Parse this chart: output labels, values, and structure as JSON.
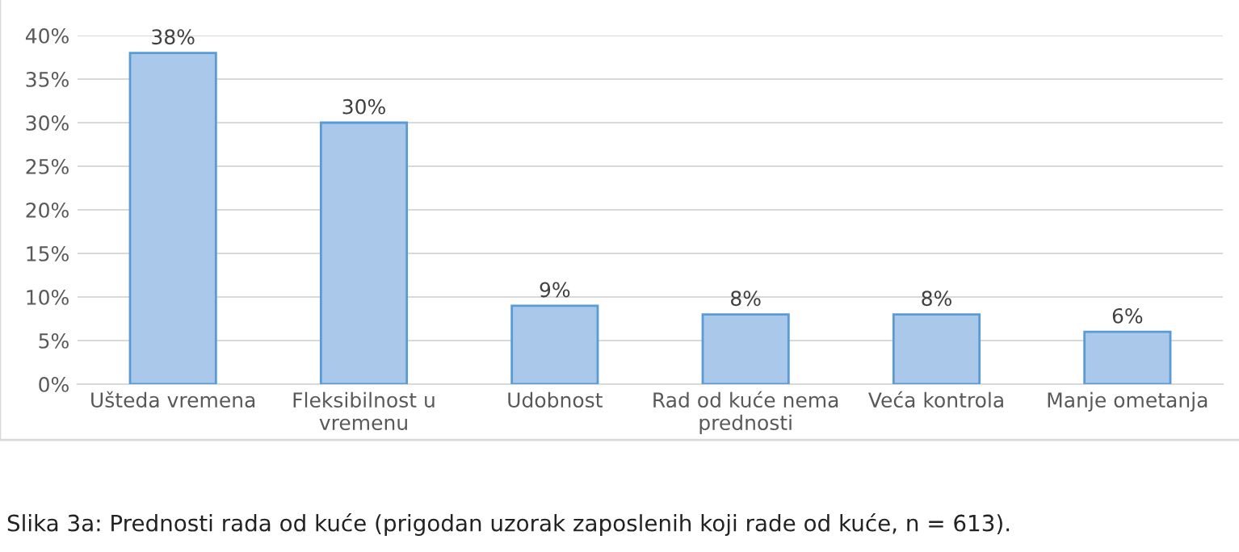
{
  "chart_data": {
    "type": "bar",
    "categories": [
      "Ušteda vremena",
      "Fleksibilnost u vremenu",
      "Udobnost",
      "Rad od kuće nema prednosti",
      "Veća kontrola",
      "Manje ometanja"
    ],
    "values": [
      38,
      30,
      9,
      8,
      8,
      6
    ],
    "value_labels": [
      "38%",
      "30%",
      "9%",
      "8%",
      "8%",
      "6%"
    ],
    "color": "#a9c8ea",
    "ylim": [
      0,
      40
    ],
    "yticks": [
      {
        "value": 0,
        "label": "0%"
      },
      {
        "value": 5,
        "label": "5%"
      },
      {
        "value": 10,
        "label": "10%"
      },
      {
        "value": 15,
        "label": "15%"
      },
      {
        "value": 20,
        "label": "20%"
      },
      {
        "value": 25,
        "label": "25%"
      },
      {
        "value": 30,
        "label": "30%"
      },
      {
        "value": 35,
        "label": "35%"
      },
      {
        "value": 40,
        "label": "40%"
      }
    ],
    "grid": "y",
    "annotations": [
      "Slika 3a: Prednosti rada od kuće (prigodan uzorak zaposlenih koji rade od kuće, n = 613)."
    ]
  }
}
